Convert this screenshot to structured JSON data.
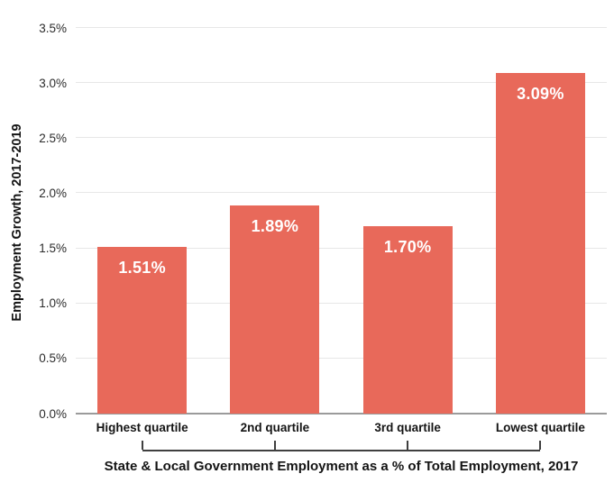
{
  "chart_data": {
    "type": "bar",
    "categories": [
      "Highest quartile",
      "2nd quartile",
      "3rd quartile",
      "Lowest quartile"
    ],
    "values": [
      1.51,
      1.89,
      1.7,
      3.09
    ],
    "value_labels": [
      "1.51%",
      "1.89%",
      "1.70%",
      "3.09%"
    ],
    "title": "",
    "xlabel": "State & Local Government Employment as a % of Total Employment, 2017",
    "ylabel": "Employment Growth, 2017-2019",
    "ylim": [
      0,
      3.5
    ],
    "ytick_step": 0.5,
    "ytick_labels": [
      "0.0%",
      "0.5%",
      "1.0%",
      "1.5%",
      "2.0%",
      "2.5%",
      "3.0%",
      "3.5%"
    ],
    "grid": true,
    "legend": "none",
    "colors": {
      "bar": "#e8695a",
      "value_label": "#ffffff",
      "gridline": "#e7e7e7",
      "axis_line": "#9b9b9b",
      "bracket": "#3f3f3f",
      "text": "#141414"
    }
  }
}
